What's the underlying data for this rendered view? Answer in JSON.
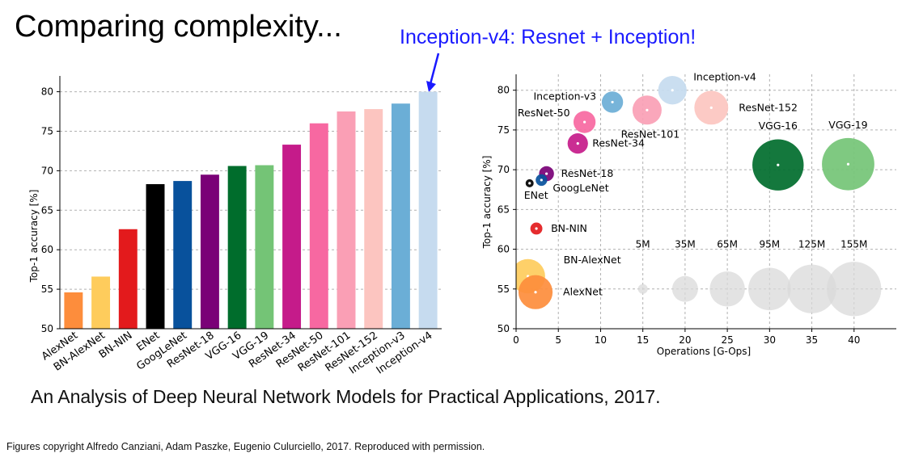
{
  "slide": {
    "title": "Comparing complexity...",
    "callout": "Inception-v4: Resnet + Inception!",
    "subtitle": "An Analysis of Deep Neural Network Models for Practical Applications, 2017.",
    "footnote": "Figures copyright Alfredo Canziani, Adam Paszke, Eugenio Culurciello, 2017. Reproduced with permission."
  },
  "chart_data": [
    {
      "type": "bar",
      "ylabel": "Top-1 accuracy [%]",
      "xlabel": "",
      "ylim": [
        50,
        82
      ],
      "yticks": [
        50,
        55,
        60,
        65,
        70,
        75,
        80
      ],
      "grid": true,
      "categories": [
        "AlexNet",
        "BN-AlexNet",
        "BN-NIN",
        "ENet",
        "GoogLeNet",
        "ResNet-18",
        "VGG-16",
        "VGG-19",
        "ResNet-34",
        "ResNet-50",
        "ResNet-101",
        "ResNet-152",
        "Inception-v3",
        "Inception-v4"
      ],
      "values": [
        54.6,
        56.6,
        62.6,
        68.3,
        68.7,
        69.5,
        70.6,
        70.7,
        73.3,
        76.0,
        77.5,
        77.8,
        78.5,
        80.0
      ],
      "colors": [
        "#fd8d3c",
        "#fecc5c",
        "#e31a1c",
        "#000000",
        "#08519c",
        "#7a0177",
        "#006d2c",
        "#74c476",
        "#c51b8a",
        "#f768a1",
        "#fa9fb5",
        "#fcc5c0",
        "#6baed6",
        "#c6dbef"
      ]
    },
    {
      "type": "scatter",
      "xlabel": "Operations [G-Ops]",
      "ylabel": "Top-1 accuracy [%]",
      "xlim": [
        0,
        45
      ],
      "ylim": [
        50,
        82
      ],
      "xticks": [
        0,
        5,
        10,
        15,
        20,
        25,
        30,
        35,
        40
      ],
      "yticks": [
        50,
        55,
        60,
        65,
        70,
        75,
        80
      ],
      "grid": true,
      "size_encoding": "parameters",
      "points": [
        {
          "name": "AlexNet",
          "x": 2.3,
          "y": 54.6,
          "params_m": 61,
          "color": "#fd8d3c"
        },
        {
          "name": "BN-AlexNet",
          "x": 1.4,
          "y": 56.6,
          "params_m": 62,
          "color": "#fecc5c"
        },
        {
          "name": "BN-NIN",
          "x": 2.4,
          "y": 62.6,
          "params_m": 7.6,
          "color": "#e31a1c"
        },
        {
          "name": "ENet",
          "x": 1.6,
          "y": 68.3,
          "params_m": 0.4,
          "color": "#000000"
        },
        {
          "name": "GoogLeNet",
          "x": 3.0,
          "y": 68.7,
          "params_m": 7,
          "color": "#08519c"
        },
        {
          "name": "ResNet-18",
          "x": 3.6,
          "y": 69.5,
          "params_m": 11.7,
          "color": "#7a0177"
        },
        {
          "name": "VGG-16",
          "x": 31,
          "y": 70.6,
          "params_m": 138,
          "color": "#006d2c"
        },
        {
          "name": "VGG-19",
          "x": 39.3,
          "y": 70.7,
          "params_m": 144,
          "color": "#74c476"
        },
        {
          "name": "ResNet-34",
          "x": 7.3,
          "y": 73.3,
          "params_m": 21.8,
          "color": "#c51b8a"
        },
        {
          "name": "ResNet-50",
          "x": 8.1,
          "y": 76.0,
          "params_m": 25.6,
          "color": "#f768a1"
        },
        {
          "name": "ResNet-101",
          "x": 15.5,
          "y": 77.5,
          "params_m": 44.5,
          "color": "#fa9fb5"
        },
        {
          "name": "ResNet-152",
          "x": 23.1,
          "y": 77.8,
          "params_m": 60.2,
          "color": "#fcc5c0"
        },
        {
          "name": "Inception-v3",
          "x": 11.4,
          "y": 78.5,
          "params_m": 23.8,
          "color": "#6baed6"
        },
        {
          "name": "Inception-v4",
          "x": 18.5,
          "y": 80.0,
          "params_m": 42.7,
          "color": "#c6dbef"
        }
      ],
      "size_legend": [
        {
          "label": "5M",
          "x": 15,
          "params_m": 5
        },
        {
          "label": "35M",
          "x": 20,
          "params_m": 35
        },
        {
          "label": "65M",
          "x": 25,
          "params_m": 65
        },
        {
          "label": "95M",
          "x": 30,
          "params_m": 95
        },
        {
          "label": "125M",
          "x": 35,
          "params_m": 125
        },
        {
          "label": "155M",
          "x": 40,
          "params_m": 155
        }
      ],
      "size_legend_y": 55
    }
  ]
}
